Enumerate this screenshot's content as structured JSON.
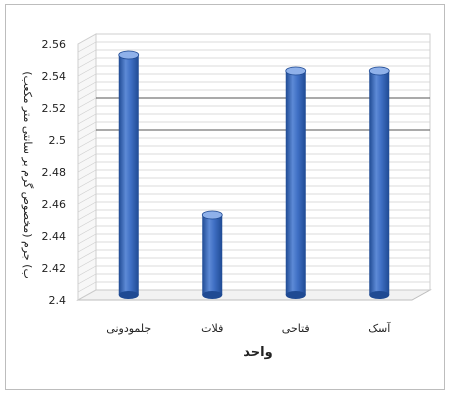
{
  "chart_data": {
    "type": "bar",
    "title": "",
    "xlabel": "واحد",
    "ylabel": "ب) جرم (مخصوص گرم بر سانتی متر مکعب)",
    "categories": [
      "جلمودونی",
      "فلات",
      "فتاحی",
      "آسک"
    ],
    "values": [
      2.55,
      2.45,
      2.54,
      2.54
    ],
    "ylim": [
      2.4,
      2.56
    ],
    "yticks": [
      "2.4",
      "2.42",
      "2.44",
      "2.46",
      "2.48",
      "2.5",
      "2.52",
      "2.54",
      "2.56"
    ],
    "grid": true,
    "legend": "none",
    "colors": {
      "bar": "#3f6fc4",
      "bar_dark": "#1f4a93",
      "bar_light": "#8fb1ea",
      "grid": "#cfcfcf",
      "grid_major": "#555555",
      "axis_text": "#222222"
    }
  }
}
